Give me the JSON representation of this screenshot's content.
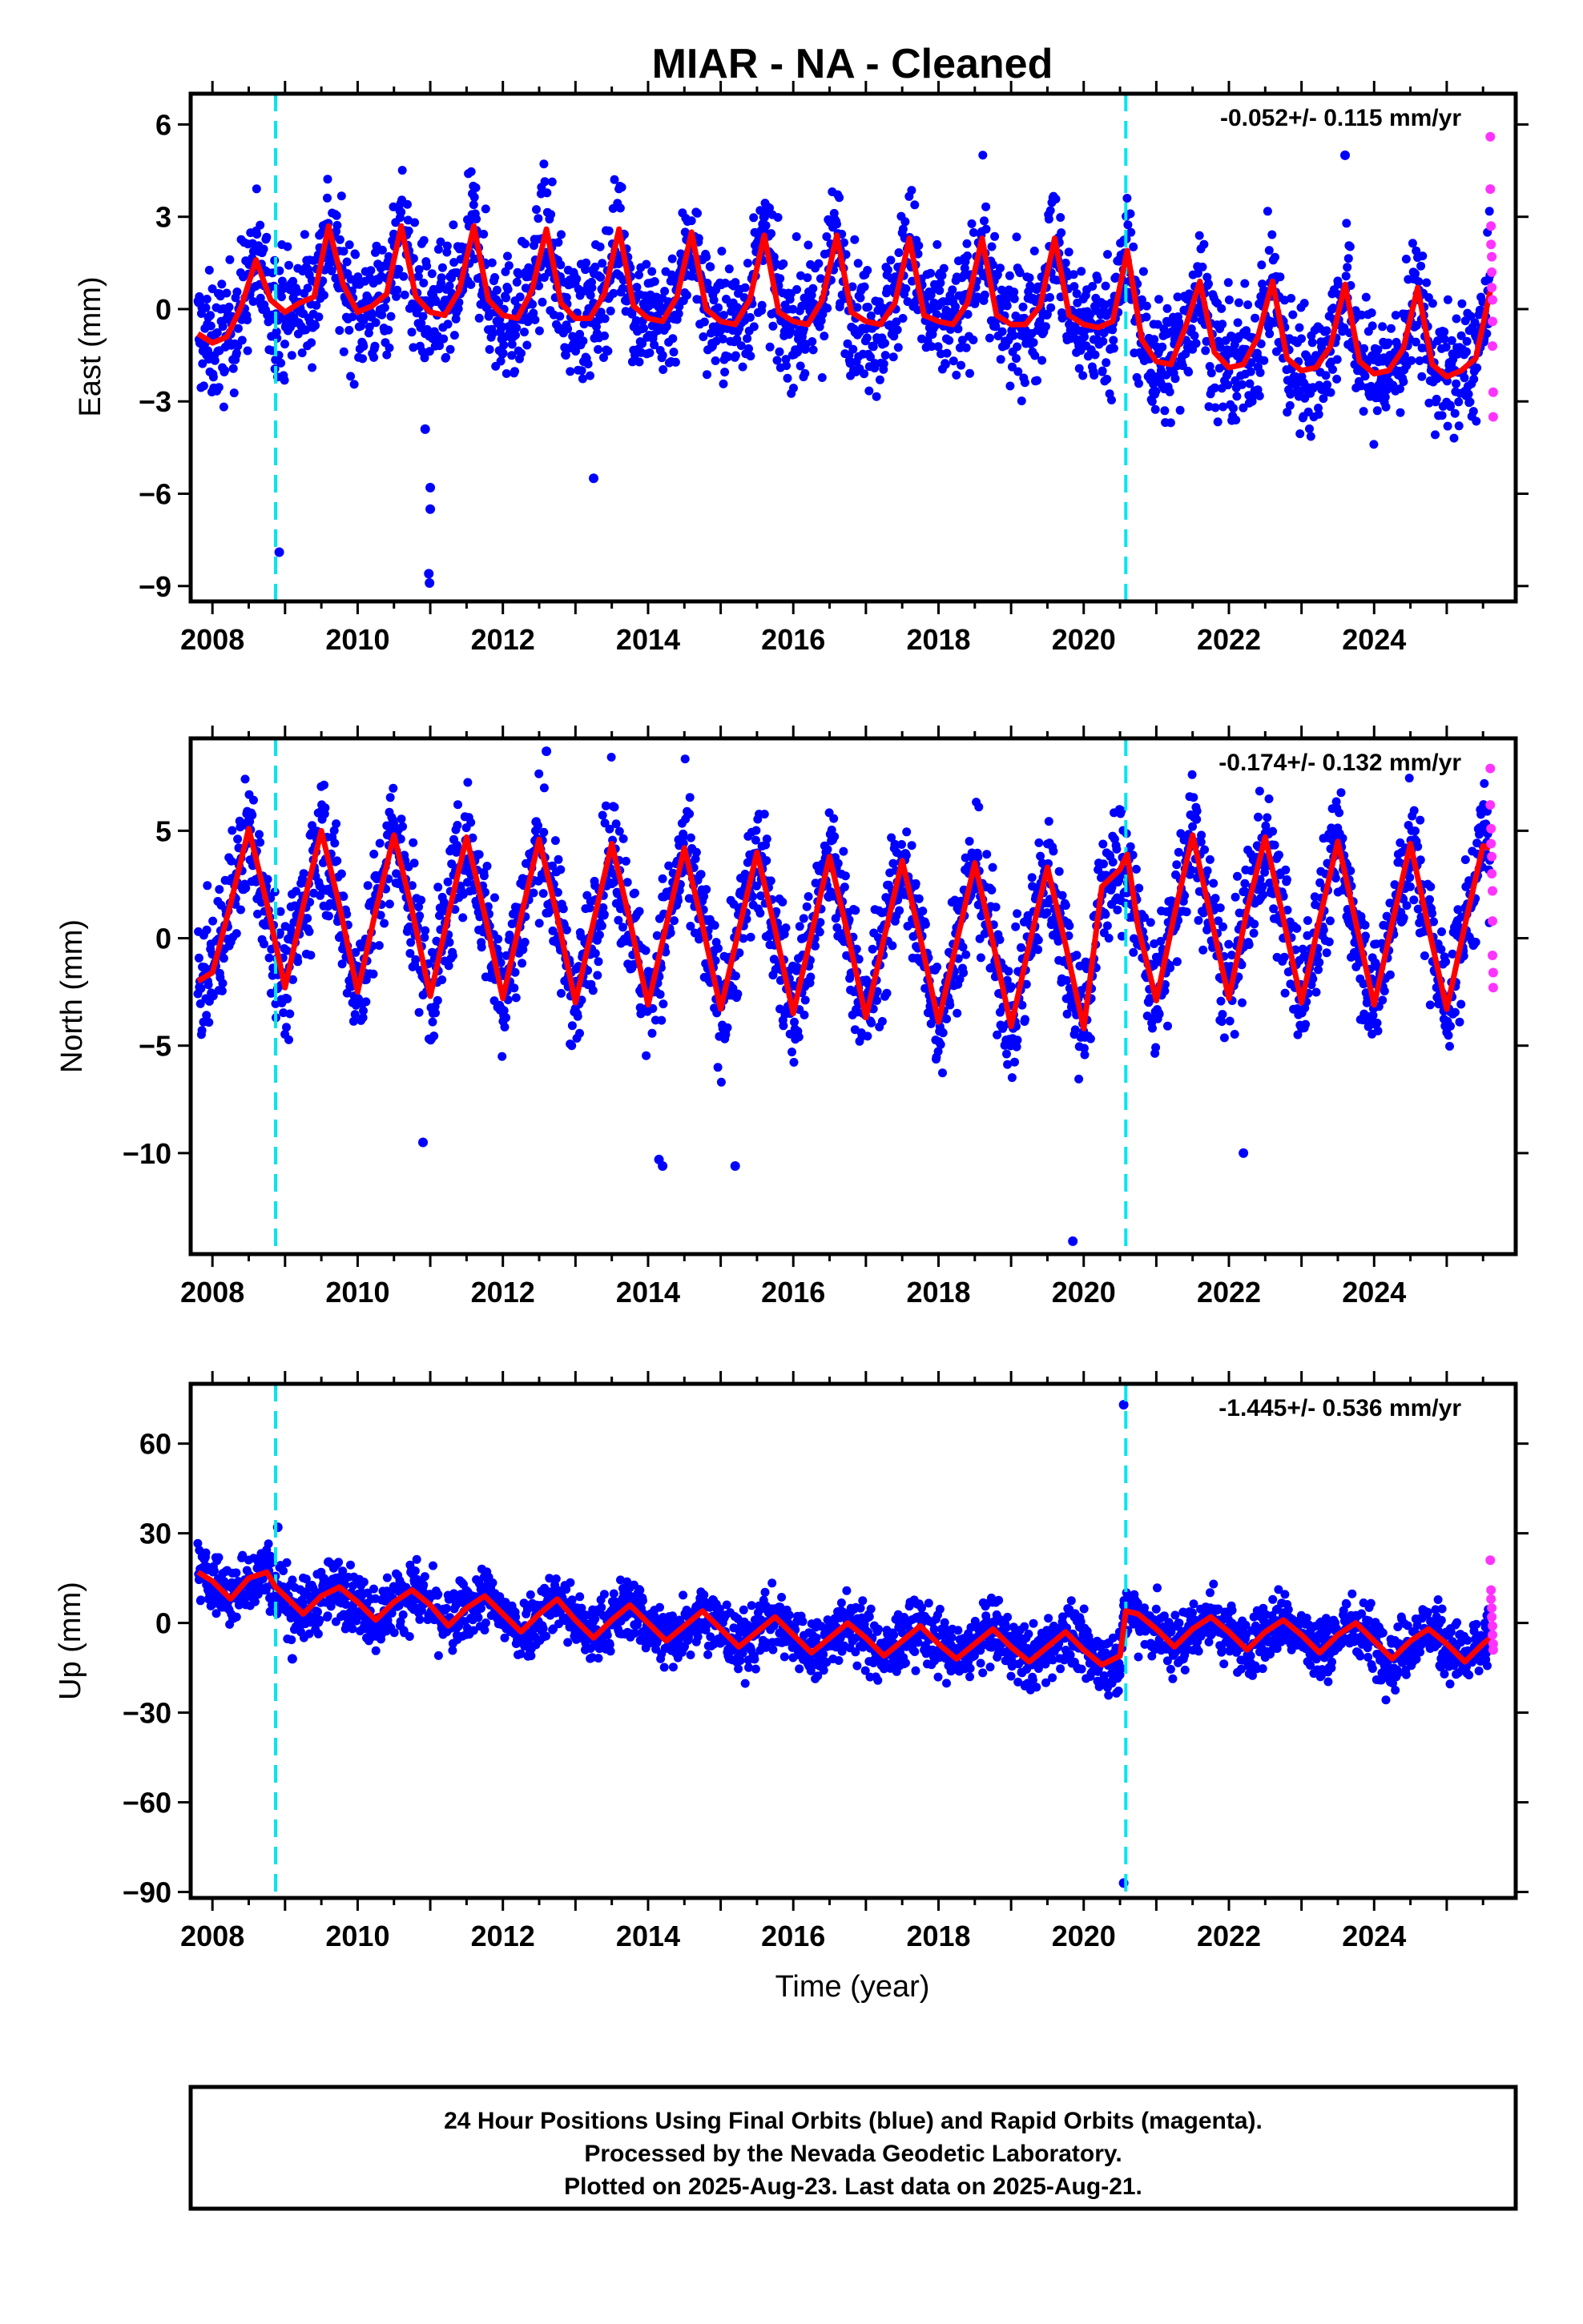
{
  "title": "MIAR  - NA - Cleaned",
  "xlabel": "Time (year)",
  "footer": {
    "line1": "24 Hour Positions Using Final Orbits (blue) and Rapid Orbits (magenta).",
    "line2": "Processed by the Nevada Geodetic Laboratory.",
    "line3": "Plotted on 2025-Aug-23. Last data on 2025-Aug-21."
  },
  "colors": {
    "final": "#0000ff",
    "rapid": "#ff33ff",
    "model": "#ff0000",
    "event": "#00e5ee"
  },
  "chart_data": [
    {
      "type": "scatter",
      "name": "east",
      "ylabel": "East (mm)",
      "rate": "-0.052+/- 0.115 mm/yr",
      "xlim": [
        2007.7,
        2025.95
      ],
      "ylim": [
        -9.5,
        7
      ],
      "xticks": [
        2008,
        2010,
        2012,
        2014,
        2016,
        2018,
        2020,
        2022,
        2024
      ],
      "yticks": [
        -9,
        -6,
        -3,
        0,
        3,
        6
      ],
      "ytick_labels": [
        "−9",
        "−6",
        "−3",
        "0",
        "3",
        "6"
      ],
      "event_lines": [
        2008.87,
        2020.58
      ],
      "series": [
        {
          "role": "model",
          "x": [
            2007.8,
            2008.0,
            2008.2,
            2008.4,
            2008.6,
            2008.8,
            2009.0,
            2009.2,
            2009.4,
            2009.6,
            2009.8,
            2010.0,
            2010.2,
            2010.4,
            2010.6,
            2010.8,
            2011.0,
            2011.2,
            2011.4,
            2011.6,
            2011.8,
            2012.0,
            2012.2,
            2012.4,
            2012.6,
            2012.8,
            2013.0,
            2013.2,
            2013.4,
            2013.6,
            2013.8,
            2014.0,
            2014.2,
            2014.4,
            2014.6,
            2014.8,
            2015.0,
            2015.2,
            2015.4,
            2015.6,
            2015.8,
            2016.0,
            2016.2,
            2016.4,
            2016.6,
            2016.8,
            2017.0,
            2017.2,
            2017.4,
            2017.6,
            2017.8,
            2018.0,
            2018.2,
            2018.4,
            2018.6,
            2018.8,
            2019.0,
            2019.2,
            2019.4,
            2019.6,
            2019.8,
            2020.0,
            2020.2,
            2020.4,
            2020.6,
            2020.8,
            2021.0,
            2021.2,
            2021.4,
            2021.6,
            2021.8,
            2022.0,
            2022.2,
            2022.4,
            2022.6,
            2022.8,
            2023.0,
            2023.2,
            2023.4,
            2023.6,
            2023.8,
            2024.0,
            2024.2,
            2024.4,
            2024.6,
            2024.8,
            2025.0,
            2025.2,
            2025.4,
            2025.6
          ],
          "y": [
            -0.8,
            -1.1,
            -0.9,
            0.1,
            1.6,
            0.3,
            -0.1,
            0.2,
            0.4,
            2.7,
            0.8,
            -0.1,
            0.1,
            0.5,
            2.7,
            0.4,
            -0.1,
            -0.2,
            0.6,
            2.7,
            0.3,
            -0.2,
            -0.3,
            0.6,
            2.6,
            0.2,
            -0.3,
            -0.3,
            0.5,
            2.6,
            0.1,
            -0.3,
            -0.4,
            0.4,
            2.5,
            0.0,
            -0.4,
            -0.5,
            0.3,
            2.4,
            -0.1,
            -0.4,
            -0.5,
            0.3,
            2.4,
            -0.1,
            -0.4,
            -0.5,
            0.2,
            2.3,
            -0.2,
            -0.4,
            -0.5,
            0.2,
            2.3,
            -0.2,
            -0.5,
            -0.5,
            0.1,
            2.3,
            -0.2,
            -0.5,
            -0.6,
            -0.4,
            1.9,
            -1.0,
            -1.7,
            -1.8,
            -0.6,
            0.9,
            -1.4,
            -1.9,
            -1.8,
            -0.9,
            0.9,
            -1.6,
            -2.0,
            -1.9,
            -1.2,
            0.8,
            -1.7,
            -2.1,
            -2.0,
            -1.3,
            0.7,
            -1.8,
            -2.2,
            -2.0,
            -1.6,
            0.6
          ]
        },
        {
          "role": "rapid",
          "x": [
            2025.6,
            2025.6,
            2025.61,
            2025.61,
            2025.62,
            2025.62,
            2025.62,
            2025.63,
            2025.63,
            2025.63,
            2025.64,
            2025.64
          ],
          "y": [
            5.6,
            3.9,
            2.7,
            2.1,
            1.7,
            1.2,
            0.7,
            0.3,
            -0.4,
            -1.2,
            -2.7,
            -3.5
          ]
        }
      ],
      "outliers": {
        "x": [
          2008.92,
          2010.98,
          2010.99,
          2011.0,
          2011.0,
          2010.93,
          2013.25,
          2023.6
        ],
        "y": [
          -7.9,
          -8.6,
          -8.9,
          -6.5,
          -5.8,
          -3.9,
          -5.5,
          5.0
        ]
      }
    },
    {
      "type": "scatter",
      "name": "north",
      "ylabel": "North (mm)",
      "rate": "-0.174+/- 0.132 mm/yr",
      "xlim": [
        2007.7,
        2025.95
      ],
      "ylim": [
        -14.7,
        9.3
      ],
      "xticks": [
        2008,
        2010,
        2012,
        2014,
        2016,
        2018,
        2020,
        2022,
        2024
      ],
      "yticks": [
        -10,
        -5,
        0,
        5
      ],
      "ytick_labels": [
        "−10",
        "−5",
        "0",
        "5"
      ],
      "event_lines": [
        2008.87,
        2020.58
      ],
      "series": [
        {
          "role": "model",
          "x": [
            2007.8,
            2008.0,
            2008.25,
            2008.5,
            2008.75,
            2009.0,
            2009.25,
            2009.5,
            2009.75,
            2010.0,
            2010.25,
            2010.5,
            2010.75,
            2011.0,
            2011.25,
            2011.5,
            2011.75,
            2012.0,
            2012.25,
            2012.5,
            2012.75,
            2013.0,
            2013.25,
            2013.5,
            2013.75,
            2014.0,
            2014.25,
            2014.5,
            2014.75,
            2015.0,
            2015.25,
            2015.5,
            2015.75,
            2016.0,
            2016.25,
            2016.5,
            2016.75,
            2017.0,
            2017.25,
            2017.5,
            2017.75,
            2018.0,
            2018.25,
            2018.5,
            2018.75,
            2019.0,
            2019.25,
            2019.5,
            2019.75,
            2020.0,
            2020.25,
            2020.5,
            2020.6,
            2020.75,
            2021.0,
            2021.25,
            2021.5,
            2021.75,
            2022.0,
            2022.25,
            2022.5,
            2022.75,
            2023.0,
            2023.25,
            2023.5,
            2023.75,
            2024.0,
            2024.25,
            2024.5,
            2024.75,
            2025.0,
            2025.25,
            2025.5,
            2025.6
          ],
          "y": [
            -2.0,
            -1.6,
            1.6,
            5.1,
            1.6,
            -2.3,
            1.5,
            5.0,
            1.5,
            -2.5,
            1.3,
            4.8,
            1.3,
            -2.7,
            1.1,
            4.7,
            1.1,
            -2.8,
            1.0,
            4.6,
            1.0,
            -3.0,
            0.8,
            4.4,
            0.8,
            -3.1,
            0.6,
            4.2,
            0.6,
            -3.3,
            0.4,
            4.0,
            0.4,
            -3.5,
            0.2,
            3.8,
            0.2,
            -3.7,
            0.0,
            3.6,
            0.0,
            -3.9,
            -0.2,
            3.5,
            -0.2,
            -4.1,
            -0.3,
            3.3,
            -0.3,
            -4.2,
            2.4,
            3.2,
            3.9,
            0.5,
            -2.9,
            1.1,
            4.8,
            1.0,
            -2.8,
            1.3,
            4.7,
            0.9,
            -3.0,
            0.9,
            4.5,
            0.7,
            -3.1,
            0.7,
            4.4,
            0.5,
            -3.3,
            0.6,
            4.3,
            4.2
          ]
        },
        {
          "role": "rapid",
          "x": [
            2025.6,
            2025.6,
            2025.61,
            2025.61,
            2025.62,
            2025.62,
            2025.63,
            2025.63,
            2025.63,
            2025.64,
            2025.64
          ],
          "y": [
            7.9,
            6.2,
            5.1,
            4.4,
            3.8,
            3.0,
            2.2,
            0.8,
            -0.8,
            -1.6,
            -2.3
          ]
        }
      ],
      "outliers": {
        "x": [
          2012.6,
          2014.15,
          2014.2,
          2015.2,
          2019.85,
          2010.9,
          2022.2
        ],
        "y": [
          8.7,
          -10.3,
          -10.6,
          -10.6,
          -14.1,
          -9.5,
          -10.0
        ]
      }
    },
    {
      "type": "scatter",
      "name": "up",
      "ylabel": "Up (mm)",
      "rate": "-1.445+/- 0.536 mm/yr",
      "xlim": [
        2007.7,
        2025.95
      ],
      "ylim": [
        -92,
        80
      ],
      "xticks": [
        2008,
        2010,
        2012,
        2014,
        2016,
        2018,
        2020,
        2022,
        2024
      ],
      "yticks": [
        -90,
        -60,
        -30,
        0,
        30,
        60
      ],
      "ytick_labels": [
        "−90",
        "−60",
        "−30",
        "0",
        "30",
        "60"
      ],
      "event_lines": [
        2008.87,
        2020.58
      ],
      "series": [
        {
          "role": "model",
          "x": [
            2007.8,
            2008.0,
            2008.25,
            2008.5,
            2008.75,
            2008.87,
            2009.0,
            2009.25,
            2009.5,
            2009.75,
            2010.0,
            2010.25,
            2010.5,
            2010.75,
            2011.0,
            2011.25,
            2011.5,
            2011.75,
            2012.0,
            2012.25,
            2012.5,
            2012.75,
            2013.0,
            2013.25,
            2013.5,
            2013.75,
            2014.0,
            2014.25,
            2014.5,
            2014.75,
            2015.0,
            2015.25,
            2015.5,
            2015.75,
            2016.0,
            2016.25,
            2016.5,
            2016.75,
            2017.0,
            2017.25,
            2017.5,
            2017.75,
            2018.0,
            2018.25,
            2018.5,
            2018.75,
            2019.0,
            2019.25,
            2019.5,
            2019.75,
            2020.0,
            2020.25,
            2020.5,
            2020.58,
            2020.75,
            2021.0,
            2021.25,
            2021.5,
            2021.75,
            2022.0,
            2022.25,
            2022.5,
            2022.75,
            2023.0,
            2023.25,
            2023.5,
            2023.75,
            2024.0,
            2024.25,
            2024.5,
            2024.75,
            2025.0,
            2025.25,
            2025.5,
            2025.6
          ],
          "y": [
            17,
            14,
            8,
            15,
            17,
            12,
            9,
            3,
            9,
            12,
            7,
            1,
            7,
            11,
            6,
            -1,
            5,
            9,
            3,
            -3,
            3,
            8,
            1,
            -5,
            1,
            6,
            0,
            -6,
            -1,
            4,
            -2,
            -8,
            -3,
            2,
            -4,
            -10,
            -5,
            0,
            -5,
            -11,
            -6,
            -1,
            -7,
            -12,
            -7,
            -2,
            -8,
            -13,
            -8,
            -3,
            -9,
            -14,
            -11,
            4,
            3,
            -2,
            -8,
            -2,
            2,
            -3,
            -9,
            -3,
            1,
            -4,
            -10,
            -4,
            0,
            -6,
            -12,
            -6,
            -2,
            -7,
            -13,
            -7,
            -5
          ]
        },
        {
          "role": "rapid",
          "x": [
            2025.6,
            2025.61,
            2025.61,
            2025.62,
            2025.62,
            2025.63,
            2025.63,
            2025.64,
            2025.64
          ],
          "y": [
            21,
            11,
            8,
            5,
            2,
            -1,
            -4,
            -7,
            -9
          ]
        }
      ],
      "outliers": {
        "x": [
          2020.55,
          2020.55,
          2009.1,
          2008.9
        ],
        "y": [
          73,
          -87,
          -12,
          32
        ]
      }
    }
  ]
}
